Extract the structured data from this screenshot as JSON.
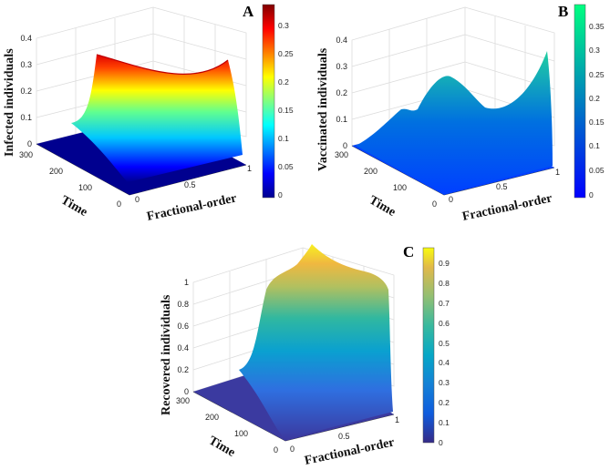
{
  "chart_data": [
    {
      "type": "surface",
      "panel_label": "A",
      "zlabel": "Infected individuals",
      "xlabel": "Fractional-order",
      "ylabel": "Time",
      "x_ticks": [
        "0",
        "0.5",
        "1"
      ],
      "y_ticks": [
        "0",
        "100",
        "200",
        "300"
      ],
      "z_ticks": [
        "0",
        "0.1",
        "0.2",
        "0.3",
        "0.4"
      ],
      "xlim": [
        0,
        1
      ],
      "ylim": [
        0,
        300
      ],
      "zlim": [
        0,
        0.4
      ],
      "colormap": "jet",
      "colorbar_ticks": [
        "0",
        "0.05",
        "0.1",
        "0.15",
        "0.2",
        "0.25",
        "0.3"
      ],
      "colorbar_range": [
        0,
        0.34
      ],
      "surface": {
        "x": [
          0,
          0.25,
          0.5,
          0.75,
          1
        ],
        "peak_z": [
          0.34,
          0.32,
          0.3,
          0.31,
          0.34
        ],
        "z_at_t0": 0,
        "rise_near_alpha": [
          0.03,
          0.97
        ]
      }
    },
    {
      "type": "surface",
      "panel_label": "B",
      "zlabel": "Vaccinated individuals",
      "xlabel": "Fractional-order",
      "ylabel": "Time",
      "x_ticks": [
        "0",
        "0.5",
        "1"
      ],
      "y_ticks": [
        "0",
        "100",
        "200",
        "300"
      ],
      "z_ticks": [
        "0",
        "0.1",
        "0.2",
        "0.3",
        "0.4"
      ],
      "xlim": [
        0,
        1
      ],
      "ylim": [
        0,
        300
      ],
      "zlim": [
        0,
        0.4
      ],
      "colormap": "winter",
      "colorbar_ticks": [
        "0",
        "0.05",
        "0.1",
        "0.15",
        "0.2",
        "0.25",
        "0.3",
        "0.35"
      ],
      "colorbar_range": [
        0,
        0.38
      ],
      "surface": {
        "x": [
          0,
          0.2,
          0.35,
          0.5,
          0.65,
          0.8,
          1
        ],
        "peak_z": [
          0.13,
          0.15,
          0.24,
          0.23,
          0.16,
          0.22,
          0.38
        ],
        "z_at_t0": 0
      }
    },
    {
      "type": "surface",
      "panel_label": "C",
      "zlabel": "Recovered individuals",
      "xlabel": "Fractional-order",
      "ylabel": "Time",
      "x_ticks": [
        "0",
        "0.5",
        "1"
      ],
      "y_ticks": [
        "0",
        "100",
        "200",
        "300"
      ],
      "z_ticks": [
        "0",
        "0.2",
        "0.4",
        "0.6",
        "0.8",
        "1"
      ],
      "xlim": [
        0,
        1
      ],
      "ylim": [
        0,
        300
      ],
      "zlim": [
        0,
        1
      ],
      "colormap": "parula",
      "colorbar_ticks": [
        "0",
        "0.1",
        "0.2",
        "0.3",
        "0.4",
        "0.5",
        "0.6",
        "0.7",
        "0.8",
        "0.9"
      ],
      "colorbar_range": [
        0,
        0.98
      ],
      "surface": {
        "x": [
          0,
          0.25,
          0.5,
          0.75,
          1
        ],
        "peak_z": [
          0.98,
          0.82,
          0.78,
          0.8,
          0.83
        ],
        "z_at_t0": 0
      }
    }
  ]
}
